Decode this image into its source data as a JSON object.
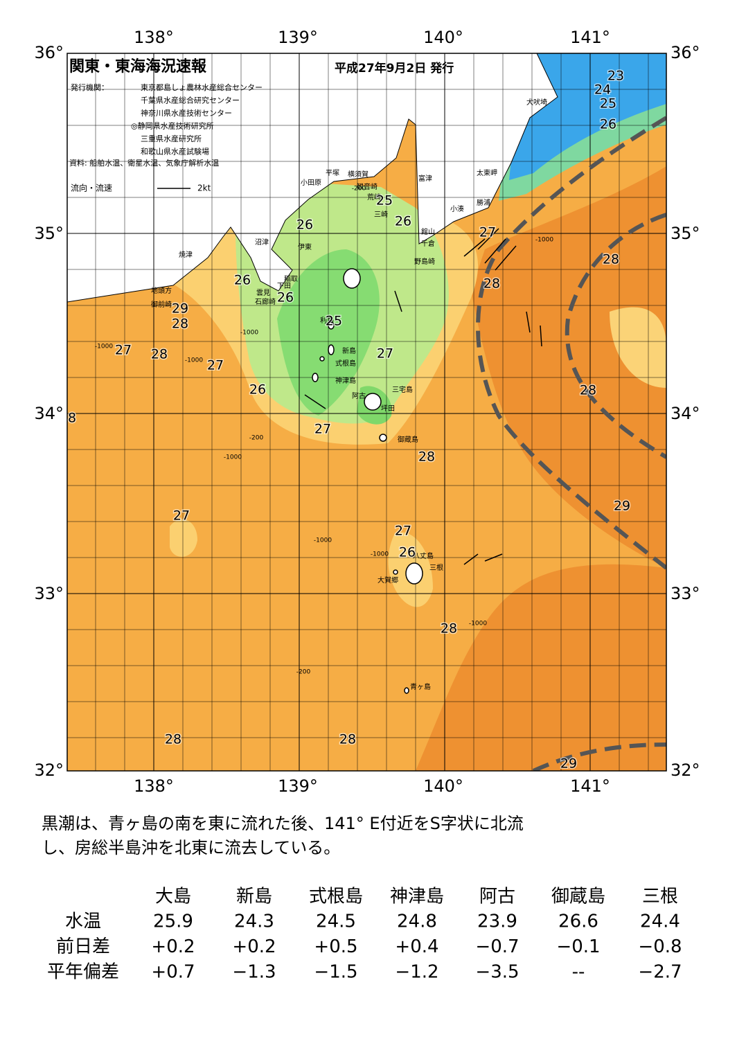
{
  "header": {
    "title": "関東・東海海況速報",
    "date": "平成27年9月2日 発行",
    "agency_label": "発行機関：",
    "agencies": [
      "東京都島しょ農林水産総合センター",
      "千葉県水産総合研究センター",
      "神奈川県水産技術センター",
      "◎静岡県水産技術研究所",
      "三重県水産研究所",
      "和歌山県水産試験場"
    ],
    "source": "資料: 船舶水温、衛星水温、気象庁解析水温",
    "legend_label": "流向・流速",
    "legend_scale": "2kt"
  },
  "map": {
    "lon_labels": [
      "138°",
      "139°",
      "140°",
      "141°"
    ],
    "lat_labels": [
      "36°",
      "35°",
      "34°",
      "33°",
      "32°"
    ],
    "places": [
      "犬吠埼",
      "太東岬",
      "勝浦",
      "小湊",
      "富津",
      "館山",
      "千倉",
      "野島崎",
      "横須賀",
      "観音崎",
      "荒崎",
      "三崎",
      "平塚",
      "小田原",
      "沼津",
      "伊東",
      "焼津",
      "稲取",
      "下田",
      "雲見",
      "石廊崎",
      "地頭方",
      "御前崎",
      "利島",
      "新島",
      "式根島",
      "神津島",
      "三宅島",
      "阿古",
      "坪田",
      "御蔵島",
      "八丈島",
      "三根",
      "大賀郷",
      "青ヶ島"
    ],
    "temperature_labels": [
      23,
      24,
      25,
      26,
      27,
      28,
      28,
      26,
      25,
      26,
      26,
      26,
      29,
      28,
      27,
      28,
      27,
      26,
      25,
      27,
      28,
      27,
      28,
      8,
      27,
      29,
      27,
      26,
      28,
      28,
      28,
      29
    ],
    "depth_labels": [
      "-200",
      "-1000",
      "-1000",
      "-1000",
      "-1000",
      "-200",
      "-1000",
      "-1000",
      "-1000",
      "-1000",
      "-200"
    ]
  },
  "summary": [
    "黒潮は、青ヶ島の南を東に流れた後、141° E付近をS字状に北流",
    "し、房総半島沖を北東に流去している。"
  ],
  "table": {
    "columns": [
      "大島",
      "新島",
      "式根島",
      "神津島",
      "阿古",
      "御蔵島",
      "三根"
    ],
    "rows": [
      {
        "label": "水温",
        "values": [
          "25.9",
          "24.3",
          "24.5",
          "24.8",
          "23.9",
          "26.6",
          "24.4"
        ]
      },
      {
        "label": "前日差",
        "values": [
          "+0.2",
          "+0.2",
          "+0.5",
          "+0.4",
          "−0.7",
          "−0.1",
          "−0.8"
        ]
      },
      {
        "label": "平年偏差",
        "values": [
          "+0.7",
          "−1.3",
          "−1.5",
          "−1.2",
          "−3.5",
          "--",
          "−2.7"
        ]
      }
    ]
  }
}
